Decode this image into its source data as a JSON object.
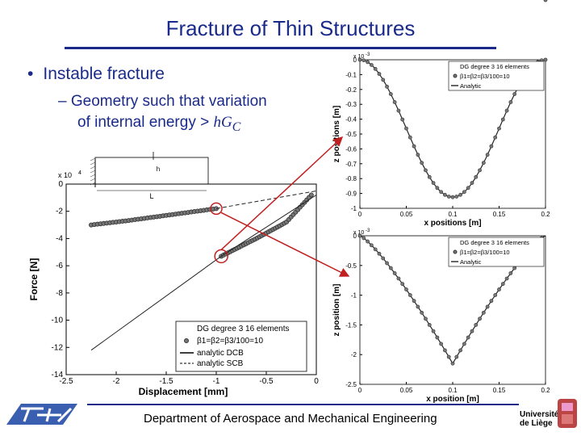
{
  "slide": {
    "title": "Fracture of Thin Structures",
    "bullet": "Instable fracture",
    "bullet_marker": "•",
    "sub_dash": "–",
    "sub_line1": "Geometry such that variation",
    "sub_line2_text": "of internal energy > ",
    "sub_line2_math": "hG",
    "sub_line2_sub": "C",
    "footer": "Department of Aerospace and Mechanical Engineering",
    "university_line1": "Université",
    "university_line2": "de Liège"
  },
  "chart_data": [
    {
      "type": "line",
      "id": "force-displacement",
      "xlabel": "Displacement [mm]",
      "ylabel": "Force [N]",
      "xlim": [
        -2.5,
        0
      ],
      "ylim": [
        -14,
        0
      ],
      "y_scale_label": "x 10",
      "y_scale_exp": "4",
      "x_ticks": [
        "-2.5",
        "-2",
        "-1.5",
        "-1",
        "-0.5",
        "0"
      ],
      "y_ticks": [
        "0",
        "-2",
        "-4",
        "-6",
        "-8",
        "-10",
        "-12",
        "-14"
      ],
      "legend_title": "DG degree 3 16 elements",
      "legend_beta": "β1=β2=β3/100=10",
      "series": [
        {
          "name": "β1=β2=β3/100=10",
          "style": "markers",
          "x": [
            -2.25,
            -1.9,
            -1.5,
            -1.0
          ],
          "y": [
            -3.0,
            -2.7,
            -2.3,
            -1.8
          ]
        },
        {
          "name": "β1=β2=β3/100=10",
          "style": "markers",
          "x": [
            -0.95,
            -0.6,
            -0.3,
            -0.05
          ],
          "y": [
            -5.3,
            -4.0,
            -2.8,
            -0.8
          ]
        },
        {
          "name": "analytic DCB",
          "style": "solid",
          "x": [
            -2.25,
            -0.95,
            0
          ],
          "y": [
            -12.2,
            -5.3,
            -0.8
          ]
        },
        {
          "name": "analytic SCB",
          "style": "dashed",
          "x": [
            -1.0,
            0
          ],
          "y": [
            -1.8,
            -0.5
          ]
        }
      ],
      "inset_label": "L",
      "inset_label2": "h"
    },
    {
      "type": "line",
      "id": "deflection-top",
      "xlabel": "x positions [m]",
      "ylabel": "z positions [m]",
      "xlim": [
        0,
        0.2
      ],
      "ylim": [
        -1,
        0
      ],
      "y_scale_label": "x 10",
      "y_scale_exp": "-3",
      "x_ticks": [
        "0",
        "0.05",
        "0.1",
        "0.15",
        "0.2"
      ],
      "y_ticks": [
        "0",
        "-0.1",
        "-0.2",
        "-0.3",
        "-0.4",
        "-0.5",
        "-0.6",
        "-0.7",
        "-0.8",
        "-0.9",
        "-1"
      ],
      "legend_title": "DG degree 3 16 elements",
      "legend_beta": "β1=β2=β3/100=10",
      "legend_analytic": "Analytic",
      "shape": "smooth",
      "min_y": -0.925
    },
    {
      "type": "line",
      "id": "deflection-bottom",
      "xlabel": "x position [m]",
      "ylabel": "z position [m]",
      "xlim": [
        0,
        0.2
      ],
      "ylim": [
        -2.5,
        0
      ],
      "y_scale_label": "x 10",
      "y_scale_exp": "-3",
      "x_ticks": [
        "0",
        "0.05",
        "0.1",
        "0.15",
        "0.2"
      ],
      "y_ticks": [
        "0",
        "-0.5",
        "-1",
        "-1.5",
        "-2",
        "-2.5"
      ],
      "legend_title": "DG degree 3 16 elements",
      "legend_beta": "β1=β2=β3/100=10",
      "legend_analytic": "Analytic",
      "shape": "kink",
      "min_y": -2.15
    }
  ],
  "colors": {
    "title": "#1a2a8a",
    "arrow": "#c02020",
    "markers": "#555555",
    "rule": "#1a2a8a"
  }
}
